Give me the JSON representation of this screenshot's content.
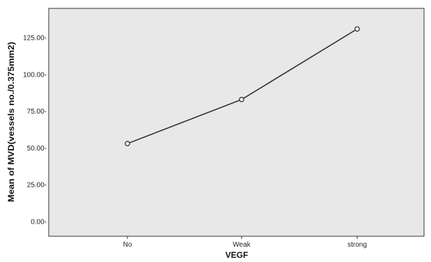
{
  "chart_data": {
    "type": "line",
    "xlabel": "VEGF",
    "ylabel": "Mean of MVD(vessels no./0.375mm2)",
    "categories": [
      "No",
      "Weak",
      "strong"
    ],
    "series": [
      {
        "values": [
          53,
          83,
          131
        ]
      }
    ],
    "ylim": [
      -10,
      145
    ],
    "yticks": [
      0,
      25,
      50,
      75,
      100,
      125
    ],
    "ytick_labels": [
      "0.00-",
      "25.00-",
      "50.00-",
      "75.00-",
      "100.00-",
      "125.00-"
    ],
    "grid": false,
    "legend": "none",
    "colors": {
      "plot_background": "#e8e8e8",
      "line": "#2a2a2a",
      "marker_fill": "#eeeeee"
    }
  }
}
